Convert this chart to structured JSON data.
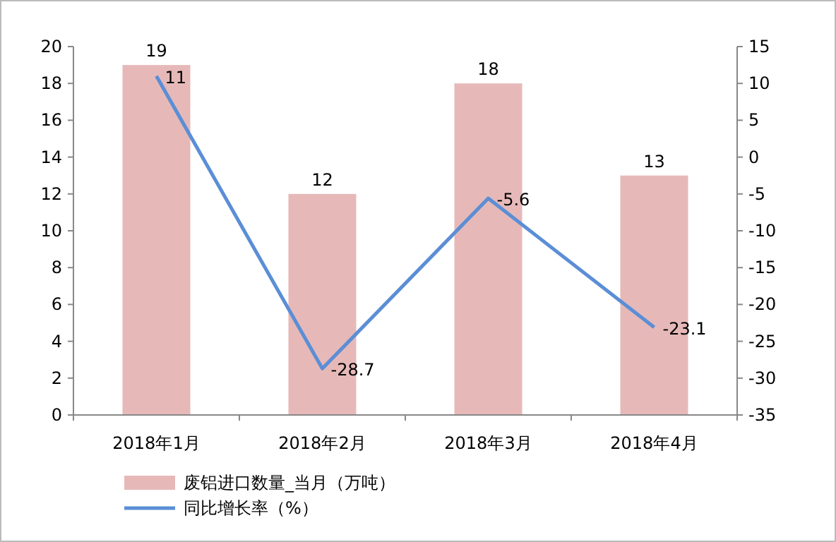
{
  "chart_data": {
    "type": "bar",
    "categories": [
      "2018年1月",
      "2018年2月",
      "2018年3月",
      "2018年4月"
    ],
    "series": [
      {
        "name": "废铝进口数量_当月（万吨）",
        "color": "#e6b9b8",
        "values": [
          19,
          12,
          18,
          13
        ]
      },
      {
        "name": "同比增长率（%）",
        "type": "line",
        "axis": "y2",
        "color": "#5b8ed6",
        "values": [
          11,
          -28.7,
          -5.6,
          -23.1
        ]
      }
    ],
    "ylim": [
      0,
      20
    ],
    "yticks": [
      0,
      2,
      4,
      6,
      8,
      10,
      12,
      14,
      16,
      18,
      20
    ],
    "y2lim": [
      -35,
      15
    ],
    "y2ticks": [
      -35,
      -30,
      -25,
      -20,
      -15,
      -10,
      -5,
      0,
      5,
      10,
      15
    ],
    "data_labels": true,
    "legend": "bottom left",
    "grid": false,
    "marker": "none"
  }
}
